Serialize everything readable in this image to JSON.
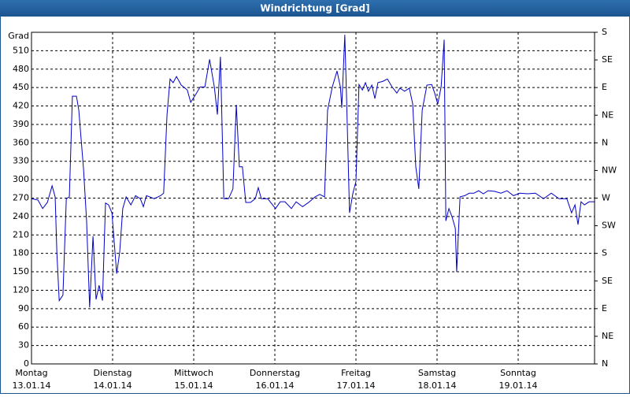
{
  "chart_data": {
    "type": "line",
    "title": "Windrichtung [Grad]",
    "ylabel": "Grad",
    "xlim": [
      0,
      166.6
    ],
    "xticks": [
      {
        "value": 0,
        "label": "Montag"
      },
      {
        "value": 24,
        "label": "Dienstag"
      },
      {
        "value": 48,
        "label": "Mittwoch"
      },
      {
        "value": 72,
        "label": "Donnerstag"
      },
      {
        "value": 96,
        "label": "Freitag"
      },
      {
        "value": 120,
        "label": "Samstag"
      },
      {
        "value": 144,
        "label": "Sonntag"
      }
    ],
    "xtick_dates": [
      "13.01.14",
      "14.01.14",
      "15.01.14",
      "16.01.14",
      "17.01.14",
      "18.01.14",
      "19.01.14"
    ],
    "ylim": [
      0,
      540
    ],
    "yticks": [
      0,
      30,
      60,
      90,
      120,
      150,
      180,
      210,
      240,
      270,
      300,
      330,
      360,
      390,
      420,
      450,
      480,
      510
    ],
    "y2lim": [
      0,
      540
    ],
    "y2ticks": [
      {
        "value": 0,
        "label": "N"
      },
      {
        "value": 45,
        "label": "NE"
      },
      {
        "value": 90,
        "label": "E"
      },
      {
        "value": 135,
        "label": "SE"
      },
      {
        "value": 180,
        "label": "S"
      },
      {
        "value": 225,
        "label": "SW"
      },
      {
        "value": 270,
        "label": "W"
      },
      {
        "value": 315,
        "label": "NW"
      },
      {
        "value": 360,
        "label": "N"
      },
      {
        "value": 405,
        "label": "NE"
      },
      {
        "value": 450,
        "label": "E"
      },
      {
        "value": 495,
        "label": "SE"
      },
      {
        "value": 540,
        "label": "S"
      }
    ],
    "grid": true,
    "x": [
      0,
      1.9,
      3.3,
      4.7,
      6.1,
      7.0,
      7.5,
      8.2,
      9.3,
      10.3,
      11.2,
      12.1,
      13.3,
      14.0,
      15.4,
      16.3,
      17.2,
      18.2,
      19.1,
      20.0,
      21.0,
      21.9,
      22.8,
      23.8,
      25.2,
      26.1,
      27.0,
      28.0,
      29.4,
      30.8,
      32.2,
      33.1,
      34.0,
      35.0,
      36.3,
      38.2,
      39.1,
      40.1,
      41.0,
      41.9,
      42.9,
      44.3,
      46.1,
      47.1,
      48.5,
      49.9,
      51.3,
      52.7,
      54.1,
      55.0,
      55.9,
      56.9,
      58.3,
      59.6,
      60.6,
      61.5,
      62.4,
      63.4,
      64.8,
      66.2,
      67.1,
      68.0,
      69.9,
      72.2,
      73.6,
      75.0,
      76.9,
      78.3,
      80.2,
      82.0,
      83.9,
      85.3,
      86.7,
      87.6,
      89.0,
      90.4,
      91.4,
      91.8,
      92.7,
      93.2,
      94.1,
      95.1,
      96.0,
      96.9,
      97.9,
      98.8,
      99.7,
      100.7,
      101.6,
      102.5,
      103.9,
      105.3,
      106.7,
      108.1,
      109.0,
      110.4,
      111.8,
      112.8,
      113.7,
      114.6,
      115.6,
      117.0,
      118.4,
      119.3,
      120.2,
      121.2,
      122.1,
      122.6,
      123.5,
      124.4,
      125.4,
      125.8,
      126.8,
      128.2,
      129.5,
      130.9,
      132.3,
      133.7,
      135.1,
      137.0,
      138.9,
      140.7,
      142.6,
      144.5,
      146.8,
      149.1,
      151.5,
      153.8,
      156.1,
      158.4,
      159.8,
      160.8,
      161.7,
      162.6,
      163.6,
      165.0,
      166.6
    ],
    "series": [
      {
        "name": "Windrichtung",
        "color": "#0000c8",
        "values": [
          269,
          267,
          253,
          263,
          290,
          272,
          182,
          103,
          112,
          269,
          272,
          436,
          436,
          413,
          317,
          233,
          92,
          208,
          105,
          128,
          103,
          262,
          259,
          246,
          147,
          182,
          253,
          272,
          259,
          274,
          269,
          256,
          274,
          272,
          269,
          274,
          278,
          406,
          464,
          458,
          468,
          454,
          446,
          426,
          438,
          451,
          451,
          496,
          451,
          406,
          500,
          269,
          269,
          285,
          422,
          321,
          321,
          263,
          263,
          269,
          287,
          269,
          269,
          253,
          264,
          264,
          253,
          264,
          256,
          263,
          272,
          276,
          272,
          413,
          451,
          477,
          451,
          417,
          536,
          438,
          246,
          278,
          297,
          455,
          446,
          458,
          444,
          454,
          432,
          458,
          460,
          464,
          451,
          441,
          449,
          444,
          449,
          423,
          321,
          285,
          413,
          454,
          455,
          441,
          423,
          451,
          528,
          233,
          253,
          240,
          221,
          150,
          272,
          274,
          278,
          278,
          282,
          277,
          282,
          281,
          278,
          282,
          274,
          278,
          277,
          278,
          269,
          278,
          269,
          269,
          246,
          259,
          227,
          264,
          259,
          264,
          264
        ]
      }
    ]
  }
}
